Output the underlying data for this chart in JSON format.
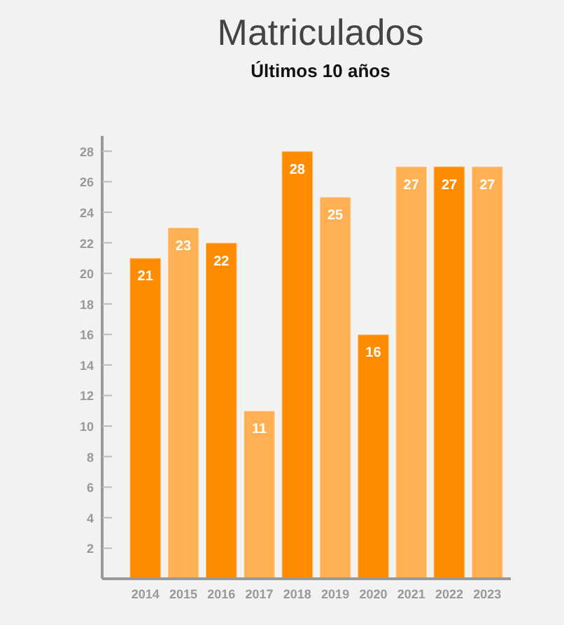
{
  "chart_data": {
    "type": "bar",
    "title": "Matriculados",
    "subtitle": "Últimos 10 años",
    "categories": [
      "2014",
      "2015",
      "2016",
      "2017",
      "2018",
      "2019",
      "2020",
      "2021",
      "2022",
      "2023"
    ],
    "values": [
      21,
      23,
      22,
      11,
      28,
      25,
      16,
      27,
      27,
      27
    ],
    "colors": [
      "#ff8c00",
      "#ffb055",
      "#ff8c00",
      "#ffb055",
      "#ff8c00",
      "#ffb055",
      "#ff8c00",
      "#ffb055",
      "#ff8c00",
      "#ffb055"
    ],
    "ylim": [
      0,
      29
    ],
    "yticks": [
      2,
      4,
      6,
      8,
      10,
      12,
      14,
      16,
      18,
      20,
      22,
      24,
      26,
      28
    ],
    "data_labels": true,
    "grid": false
  }
}
